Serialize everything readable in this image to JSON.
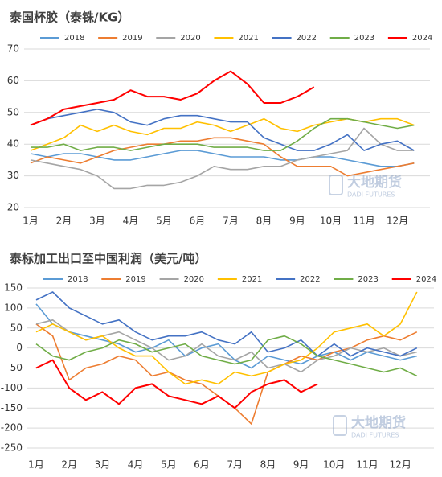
{
  "chart_data": [
    {
      "type": "line",
      "title": "泰国杯胶（泰铢/KG）",
      "watermark": {
        "cn": "大地期货",
        "en": "DADI FUTURES"
      },
      "categories": [
        "1月",
        null,
        "2月",
        null,
        "3月",
        null,
        "4月",
        null,
        "5月",
        null,
        "6月",
        null,
        "7月",
        null,
        "8月",
        null,
        "9月",
        null,
        "10月",
        null,
        "11月",
        null,
        "12月",
        null
      ],
      "ylim": [
        20,
        70
      ],
      "yticks": [
        20,
        30,
        40,
        50,
        60,
        70
      ],
      "grid": true,
      "series": [
        {
          "name": "2018",
          "color": "#5b9bd5",
          "values": [
            37,
            36,
            37,
            37,
            36,
            35,
            35,
            36,
            37,
            38,
            38,
            37,
            36,
            36,
            36,
            35,
            35,
            36,
            36,
            35,
            34,
            33,
            33,
            34
          ]
        },
        {
          "name": "2019",
          "color": "#ed7d31",
          "values": [
            34,
            36,
            35,
            34,
            36,
            38,
            39,
            40,
            40,
            41,
            41,
            42,
            42,
            41,
            40,
            36,
            33,
            33,
            33,
            30,
            31,
            32,
            33,
            34
          ]
        },
        {
          "name": "2020",
          "color": "#a5a5a5",
          "values": [
            35,
            34,
            33,
            32,
            30,
            26,
            26,
            27,
            27,
            28,
            30,
            33,
            32,
            32,
            33,
            33,
            35,
            36,
            37,
            38,
            45,
            40,
            38,
            38
          ]
        },
        {
          "name": "2021",
          "color": "#ffc000",
          "values": [
            38,
            40,
            42,
            46,
            44,
            46,
            44,
            43,
            45,
            45,
            47,
            46,
            44,
            46,
            48,
            45,
            44,
            46,
            47,
            48,
            47,
            48,
            48,
            46
          ]
        },
        {
          "name": "2022",
          "color": "#4472c4",
          "values": [
            46,
            48,
            49,
            50,
            51,
            50,
            47,
            46,
            48,
            49,
            49,
            48,
            47,
            47,
            42,
            40,
            38,
            38,
            40,
            43,
            38,
            40,
            41,
            38
          ]
        },
        {
          "name": "2023",
          "color": "#70ad47",
          "values": [
            39,
            39,
            40,
            38,
            39,
            39,
            38,
            39,
            40,
            40,
            40,
            39,
            39,
            39,
            38,
            38,
            41,
            45,
            48,
            48,
            47,
            46,
            45,
            46
          ]
        },
        {
          "name": "2024",
          "color": "#ff0000",
          "values": [
            46,
            48,
            51,
            52,
            53,
            54,
            57,
            55,
            55,
            54,
            56,
            60,
            63,
            59,
            53,
            53,
            55,
            58,
            null,
            null,
            null,
            null,
            null,
            null
          ]
        }
      ]
    },
    {
      "type": "line",
      "title": "泰标加工出口至中国利润（美元/吨）",
      "watermark": {
        "cn": "大地期货",
        "en": "DADI FUTURES"
      },
      "categories": [
        "1月",
        null,
        "2月",
        null,
        "3月",
        null,
        "4月",
        null,
        "5月",
        null,
        "6月",
        null,
        "7月",
        null,
        "8月",
        null,
        "9月",
        null,
        "10月",
        null,
        "11月",
        null,
        "12月",
        null
      ],
      "ylim": [
        -250,
        150
      ],
      "yticks": [
        -250,
        -200,
        -150,
        -100,
        -50,
        0,
        50,
        100,
        150
      ],
      "grid": true,
      "series": [
        {
          "name": "2018",
          "color": "#5b9bd5",
          "values": [
            110,
            60,
            40,
            30,
            20,
            10,
            -10,
            0,
            20,
            -20,
            0,
            10,
            -30,
            -50,
            -20,
            -30,
            -40,
            -20,
            -10,
            -30,
            -10,
            -20,
            -30,
            -20
          ]
        },
        {
          "name": "2019",
          "color": "#ed7d31",
          "values": [
            60,
            30,
            -80,
            -50,
            -40,
            -20,
            -30,
            -70,
            -60,
            -80,
            -90,
            -120,
            -150,
            -190,
            -60,
            -40,
            -20,
            -30,
            -10,
            0,
            20,
            30,
            20,
            40
          ]
        },
        {
          "name": "2020",
          "color": "#a5a5a5",
          "values": [
            60,
            70,
            40,
            20,
            30,
            40,
            20,
            0,
            -30,
            -20,
            10,
            -20,
            -30,
            -10,
            -50,
            -40,
            -60,
            -30,
            -20,
            0,
            -10,
            0,
            -20,
            -10
          ]
        },
        {
          "name": "2021",
          "color": "#ffc000",
          "values": [
            40,
            60,
            40,
            20,
            30,
            0,
            -20,
            -20,
            -60,
            -90,
            -80,
            -90,
            -60,
            -70,
            -60,
            -40,
            -30,
            0,
            40,
            50,
            60,
            30,
            60,
            140
          ]
        },
        {
          "name": "2022",
          "color": "#4472c4",
          "values": [
            120,
            140,
            100,
            80,
            60,
            70,
            40,
            20,
            30,
            30,
            40,
            20,
            10,
            40,
            -10,
            0,
            20,
            -20,
            10,
            -20,
            0,
            -10,
            -20,
            0
          ]
        },
        {
          "name": "2023",
          "color": "#70ad47",
          "values": [
            10,
            -20,
            -30,
            -10,
            0,
            20,
            10,
            -10,
            0,
            10,
            -20,
            -30,
            -40,
            -30,
            20,
            30,
            10,
            -20,
            -30,
            -40,
            -50,
            -60,
            -50,
            -70
          ]
        },
        {
          "name": "2024",
          "color": "#ff0000",
          "values": [
            -50,
            -30,
            -100,
            -130,
            -110,
            -140,
            -100,
            -90,
            -120,
            -130,
            -140,
            -120,
            -150,
            -110,
            -90,
            -80,
            -110,
            -90,
            null,
            null,
            null,
            null,
            null,
            null
          ]
        }
      ]
    }
  ]
}
